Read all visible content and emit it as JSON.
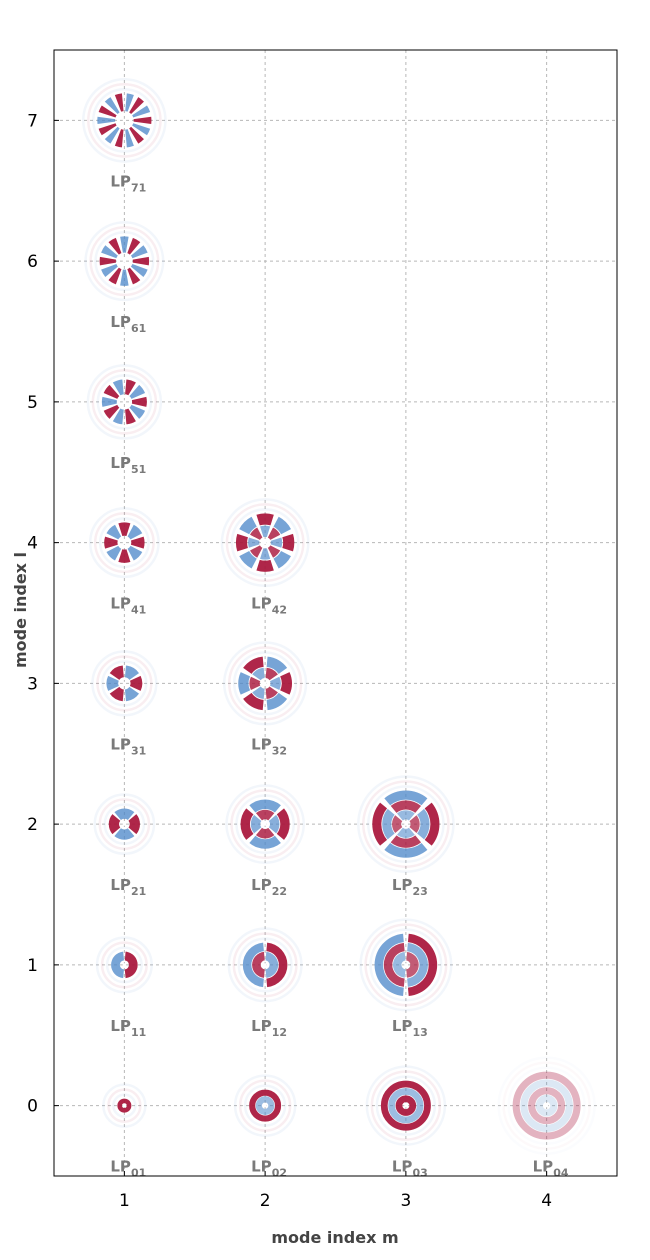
{
  "chart_data": {
    "type": "scatter",
    "title": "",
    "xlabel": "mode index m",
    "ylabel": "mode index l",
    "xlim": [
      0.5,
      4.5
    ],
    "ylim": [
      -0.5,
      7.5
    ],
    "xticks": [
      "1",
      "2",
      "3",
      "4"
    ],
    "yticks": [
      "0",
      "1",
      "2",
      "3",
      "4",
      "5",
      "6",
      "7"
    ],
    "grid": true,
    "colors": {
      "positive": "#a8143a",
      "negative": "#4a86c8",
      "grid": "#b8b8b8",
      "label": "#7a7a7a"
    },
    "points": [
      {
        "m": 1,
        "l": 0,
        "label_main": "LP",
        "label_sub": "01"
      },
      {
        "m": 2,
        "l": 0,
        "label_main": "LP",
        "label_sub": "02"
      },
      {
        "m": 3,
        "l": 0,
        "label_main": "LP",
        "label_sub": "03"
      },
      {
        "m": 4,
        "l": 0,
        "label_main": "LP",
        "label_sub": "04"
      },
      {
        "m": 1,
        "l": 1,
        "label_main": "LP",
        "label_sub": "11"
      },
      {
        "m": 2,
        "l": 1,
        "label_main": "LP",
        "label_sub": "12"
      },
      {
        "m": 3,
        "l": 1,
        "label_main": "LP",
        "label_sub": "13"
      },
      {
        "m": 1,
        "l": 2,
        "label_main": "LP",
        "label_sub": "21"
      },
      {
        "m": 2,
        "l": 2,
        "label_main": "LP",
        "label_sub": "22"
      },
      {
        "m": 3,
        "l": 2,
        "label_main": "LP",
        "label_sub": "23"
      },
      {
        "m": 1,
        "l": 3,
        "label_main": "LP",
        "label_sub": "31"
      },
      {
        "m": 2,
        "l": 3,
        "label_main": "LP",
        "label_sub": "32"
      },
      {
        "m": 1,
        "l": 4,
        "label_main": "LP",
        "label_sub": "41"
      },
      {
        "m": 2,
        "l": 4,
        "label_main": "LP",
        "label_sub": "42"
      },
      {
        "m": 1,
        "l": 5,
        "label_main": "LP",
        "label_sub": "51"
      },
      {
        "m": 1,
        "l": 6,
        "label_main": "LP",
        "label_sub": "61"
      },
      {
        "m": 1,
        "l": 7,
        "label_main": "LP",
        "label_sub": "71"
      }
    ]
  }
}
